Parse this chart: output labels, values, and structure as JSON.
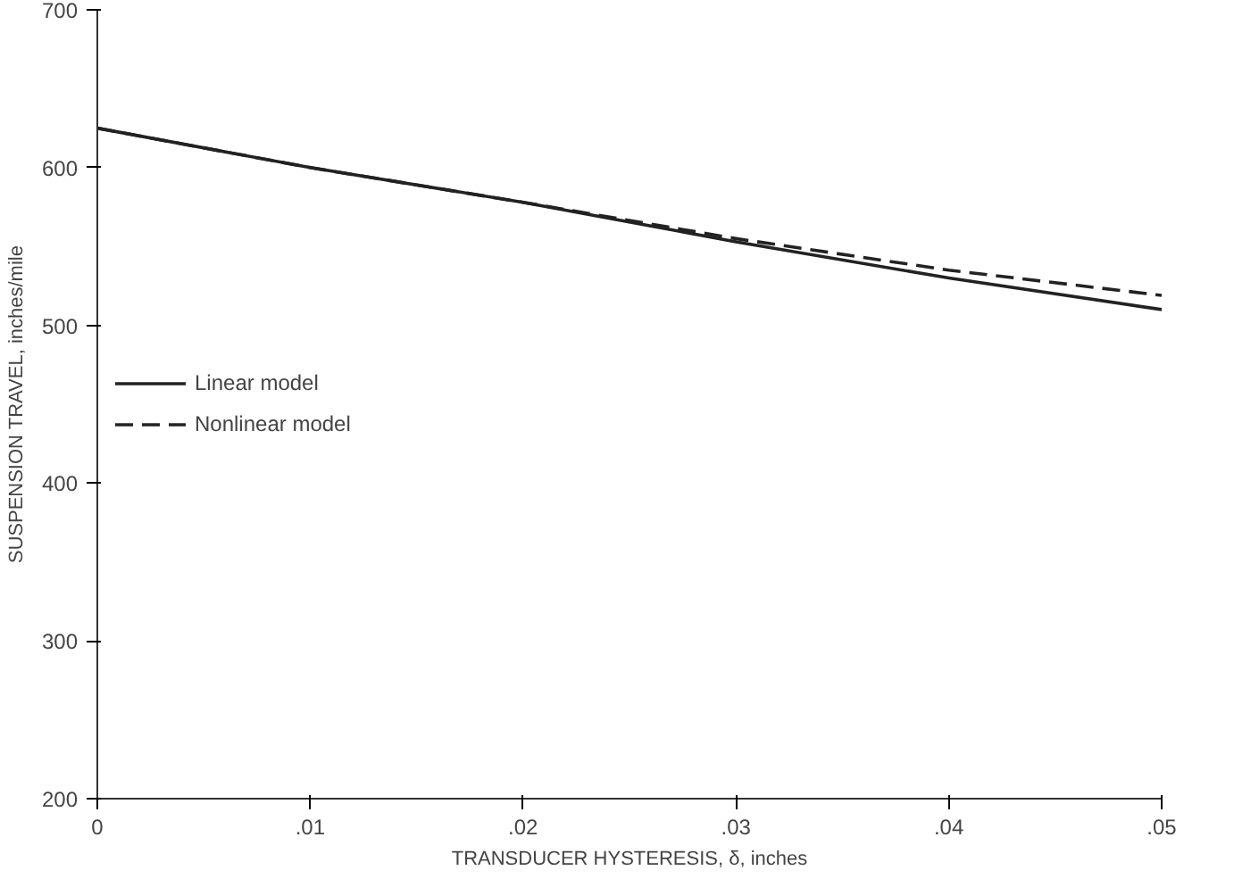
{
  "chart_data": {
    "type": "line",
    "xlabel": "TRANSDUCER HYSTERESIS, δ, inches",
    "ylabel": "SUSPENSION TRAVEL, inches/mile",
    "x": [
      0,
      0.01,
      0.02,
      0.03,
      0.04,
      0.05
    ],
    "series": [
      {
        "name": "Linear model",
        "color": "#222222",
        "line_style": "solid",
        "values": [
          625,
          600,
          578,
          553,
          530,
          510
        ]
      },
      {
        "name": "Nonlinear model",
        "color": "#222222",
        "line_style": "dashed",
        "values": [
          625,
          600,
          578,
          555,
          535,
          519
        ]
      }
    ],
    "xlim": [
      0,
      0.05
    ],
    "xticks": [
      0,
      {
        "value": 0.01,
        "label": ".01"
      },
      {
        "value": 0.02,
        "label": ".02"
      },
      {
        "value": 0.03,
        "label": ".03"
      },
      {
        "value": 0.04,
        "label": ".04"
      },
      {
        "value": 0.05,
        "label": ".05"
      }
    ],
    "ylim": [
      200,
      700
    ],
    "yticks": [
      200,
      300,
      400,
      500,
      600,
      700
    ],
    "grid": false,
    "legend": "left",
    "marker": "none"
  }
}
